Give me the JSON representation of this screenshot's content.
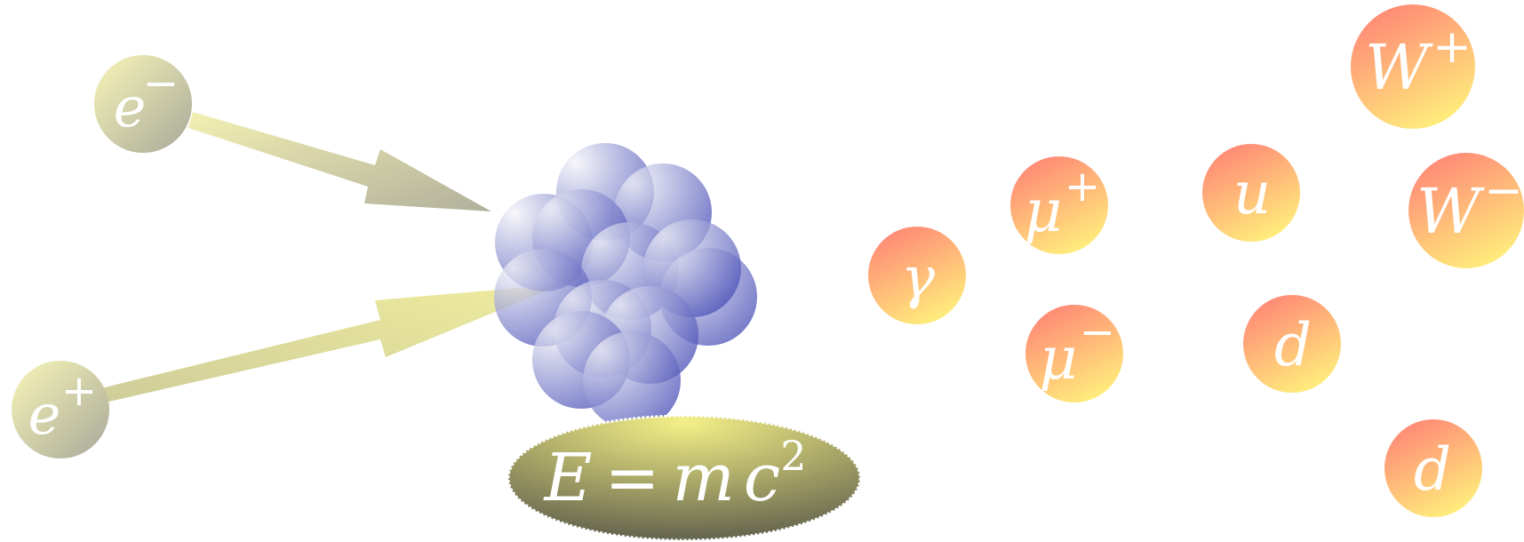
{
  "particles": {
    "electron": {
      "base": "e",
      "sup": "−"
    },
    "positron": {
      "base": "e",
      "sup": "+"
    },
    "photon": {
      "base": "γ",
      "sup": ""
    },
    "muon_plus": {
      "base": "μ",
      "sup": "+"
    },
    "muon_minus": {
      "base": "μ",
      "sup": "−"
    },
    "up_quark": {
      "base": "u",
      "sup": ""
    },
    "down_quark_1": {
      "base": "d",
      "sup": ""
    },
    "down_quark_2": {
      "base": "d",
      "sup": ""
    },
    "w_plus": {
      "base": "W",
      "sup": "+"
    },
    "w_minus": {
      "base": "W",
      "sup": "−"
    }
  },
  "equation": {
    "lhs": "E",
    "eq": "=",
    "m": "m",
    "c": "c",
    "exp": "2"
  },
  "colors": {
    "lepton_in_light": "#f8f6b8",
    "lepton_in_dark": "#a9a99c",
    "product_top": "#ff8a78",
    "product_bottom": "#fff07a",
    "nucleon_light": "#ececf4",
    "nucleon_dark": "#4a4fb8",
    "plate_light": "#f2ee84",
    "plate_dark": "#6c6c50"
  },
  "icons": [
    "collision-cluster",
    "incoming-arrow"
  ]
}
